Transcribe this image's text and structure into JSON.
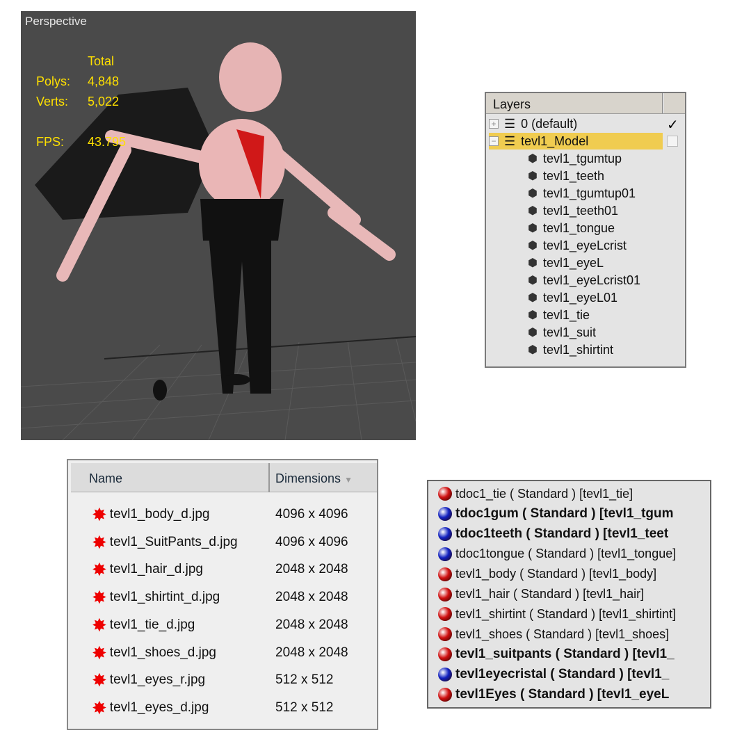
{
  "viewport": {
    "label": "Perspective",
    "stats": {
      "total_label": "Total",
      "polys_label": "Polys:",
      "polys": "4,848",
      "verts_label": "Verts:",
      "verts": "5,022",
      "fps_label": "FPS:",
      "fps": "43.795"
    }
  },
  "layers": {
    "title": "Layers",
    "groups": [
      {
        "name": "0 (default)",
        "expander": "+",
        "checked": true,
        "selected": false
      },
      {
        "name": "tevl1_Model",
        "expander": "−",
        "checked": false,
        "selected": true
      }
    ],
    "objects": [
      "tevl1_tgumtup",
      "tevl1_teeth",
      "tevl1_tgumtup01",
      "tevl1_teeth01",
      "tevl1_tongue",
      "tevl1_eyeLcrist",
      "tevl1_eyeL",
      "tevl1_eyeLcrist01",
      "tevl1_eyeL01",
      "tevl1_tie",
      "tevl1_suit",
      "tevl1_shirtint"
    ]
  },
  "files": {
    "columns": {
      "name": "Name",
      "dimensions": "Dimensions"
    },
    "rows": [
      {
        "name": "tevl1_body_d.jpg",
        "dim": "4096 x 4096"
      },
      {
        "name": "tevl1_SuitPants_d.jpg",
        "dim": "4096 x 4096"
      },
      {
        "name": "tevl1_hair_d.jpg",
        "dim": "2048 x 2048"
      },
      {
        "name": "tevl1_shirtint_d.jpg",
        "dim": "2048 x 2048"
      },
      {
        "name": "tevl1_tie_d.jpg",
        "dim": "2048 x 2048"
      },
      {
        "name": "tevl1_shoes_d.jpg",
        "dim": "2048 x 2048"
      },
      {
        "name": "tevl1_eyes_r.jpg",
        "dim": "512 x 512"
      },
      {
        "name": "tevl1_eyes_d.jpg",
        "dim": "512 x 512"
      }
    ]
  },
  "materials": {
    "colors": {
      "red": "#d01010",
      "blue": "#1020c0"
    },
    "rows": [
      {
        "text": "tdoc1_tie  ( Standard )  [tevl1_tie]",
        "color": "red",
        "bold": false
      },
      {
        "text": "tdoc1gum  ( Standard )  [tevl1_tgum",
        "color": "blue",
        "bold": true
      },
      {
        "text": "tdoc1teeth  ( Standard )  [tevl1_teet",
        "color": "blue",
        "bold": true
      },
      {
        "text": "tdoc1tongue  ( Standard )  [tevl1_tongue]",
        "color": "blue",
        "bold": false
      },
      {
        "text": "tevl1_body  ( Standard )  [tevl1_body]",
        "color": "red",
        "bold": false
      },
      {
        "text": "tevl1_hair  ( Standard )  [tevl1_hair]",
        "color": "red",
        "bold": false
      },
      {
        "text": "tevl1_shirtint  ( Standard )  [tevl1_shirtint]",
        "color": "red",
        "bold": false
      },
      {
        "text": "tevl1_shoes  ( Standard )  [tevl1_shoes]",
        "color": "red",
        "bold": false
      },
      {
        "text": "tevl1_suitpants  ( Standard )  [tevl1_",
        "color": "red",
        "bold": true
      },
      {
        "text": "tevl1eyecristal  ( Standard )  [tevl1_",
        "color": "blue",
        "bold": true
      },
      {
        "text": "tevl1Eyes  ( Standard )  [tevl1_eyeL",
        "color": "red",
        "bold": true
      }
    ]
  }
}
